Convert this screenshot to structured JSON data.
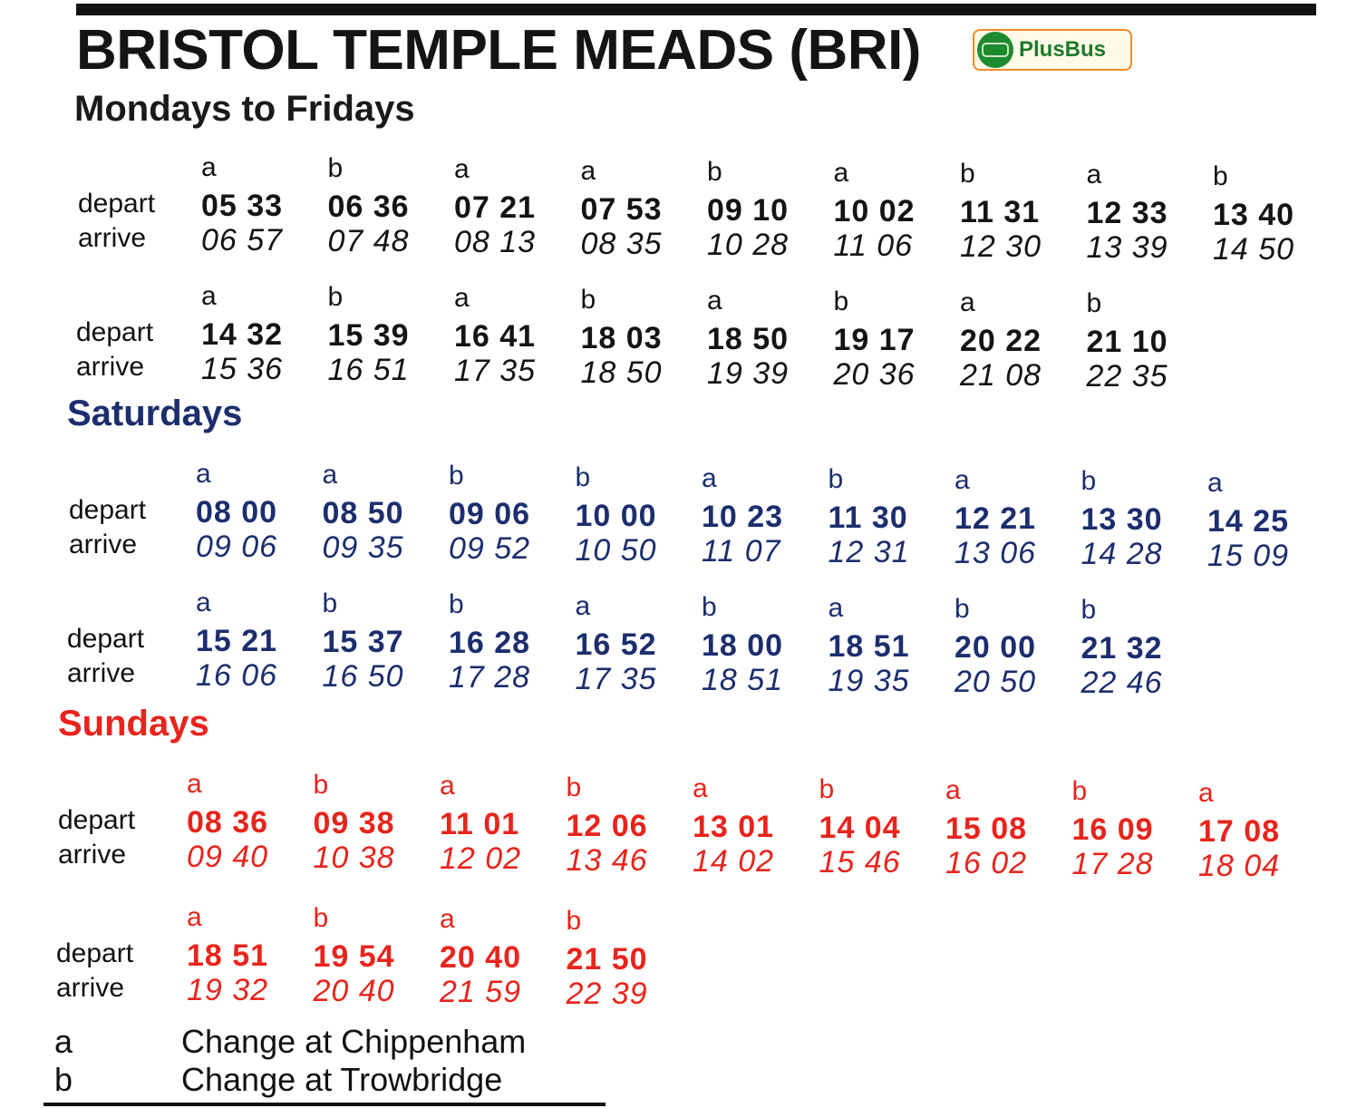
{
  "title": "BRISTOL TEMPLE MEADS (BRI)",
  "logo_text": "PlusBus",
  "labels": {
    "depart": "depart",
    "arrive": "arrive"
  },
  "colors": {
    "weekday": "#141414",
    "saturday": "#1c2e6e",
    "sunday": "#e8241c"
  },
  "sections": [
    {
      "heading": "Mondays to Fridays",
      "rows": [
        {
          "trains": [
            [
              "a",
              "05 33",
              "06 57"
            ],
            [
              "b",
              "06 36",
              "07 48"
            ],
            [
              "a",
              "07 21",
              "08 13"
            ],
            [
              "a",
              "07 53",
              "08 35"
            ],
            [
              "b",
              "09 10",
              "10 28"
            ],
            [
              "a",
              "10 02",
              "11 06"
            ],
            [
              "b",
              "11 31",
              "12 30"
            ],
            [
              "a",
              "12 33",
              "13 39"
            ],
            [
              "b",
              "13 40",
              "14 50"
            ]
          ]
        },
        {
          "trains": [
            [
              "a",
              "14 32",
              "15 36"
            ],
            [
              "b",
              "15 39",
              "16 51"
            ],
            [
              "a",
              "16 41",
              "17 35"
            ],
            [
              "b",
              "18 03",
              "18 50"
            ],
            [
              "a",
              "18 50",
              "19 39"
            ],
            [
              "b",
              "19 17",
              "20 36"
            ],
            [
              "a",
              "20 22",
              "21 08"
            ],
            [
              "b",
              "21 10",
              "22 35"
            ]
          ]
        }
      ]
    },
    {
      "heading": "Saturdays",
      "rows": [
        {
          "trains": [
            [
              "a",
              "08 00",
              "09 06"
            ],
            [
              "a",
              "08 50",
              "09 35"
            ],
            [
              "b",
              "09 06",
              "09 52"
            ],
            [
              "b",
              "10 00",
              "10 50"
            ],
            [
              "a",
              "10 23",
              "11 07"
            ],
            [
              "b",
              "11 30",
              "12 31"
            ],
            [
              "a",
              "12 21",
              "13 06"
            ],
            [
              "b",
              "13 30",
              "14 28"
            ],
            [
              "a",
              "14 25",
              "15 09"
            ]
          ]
        },
        {
          "trains": [
            [
              "a",
              "15 21",
              "16 06"
            ],
            [
              "b",
              "15 37",
              "16 50"
            ],
            [
              "b",
              "16 28",
              "17 28"
            ],
            [
              "a",
              "16 52",
              "17 35"
            ],
            [
              "b",
              "18 00",
              "18 51"
            ],
            [
              "a",
              "18 51",
              "19 35"
            ],
            [
              "b",
              "20 00",
              "20 50"
            ],
            [
              "b",
              "21 32",
              "22 46"
            ]
          ]
        }
      ]
    },
    {
      "heading": "Sundays",
      "rows": [
        {
          "trains": [
            [
              "a",
              "08 36",
              "09 40"
            ],
            [
              "b",
              "09 38",
              "10 38"
            ],
            [
              "a",
              "11 01",
              "12 02"
            ],
            [
              "b",
              "12 06",
              "13 46"
            ],
            [
              "a",
              "13 01",
              "14 02"
            ],
            [
              "b",
              "14 04",
              "15 46"
            ],
            [
              "a",
              "15 08",
              "16 02"
            ],
            [
              "b",
              "16 09",
              "17 28"
            ],
            [
              "a",
              "17 08",
              "18 04"
            ]
          ]
        },
        {
          "trains": [
            [
              "a",
              "18 51",
              "19 32"
            ],
            [
              "b",
              "19 54",
              "20 40"
            ],
            [
              "a",
              "20 40",
              "21 59"
            ],
            [
              "b",
              "21 50",
              "22 39"
            ]
          ]
        }
      ]
    }
  ],
  "legend": [
    {
      "key": "a",
      "text": "Change at Chippenham"
    },
    {
      "key": "b",
      "text": "Change at Trowbridge"
    }
  ]
}
